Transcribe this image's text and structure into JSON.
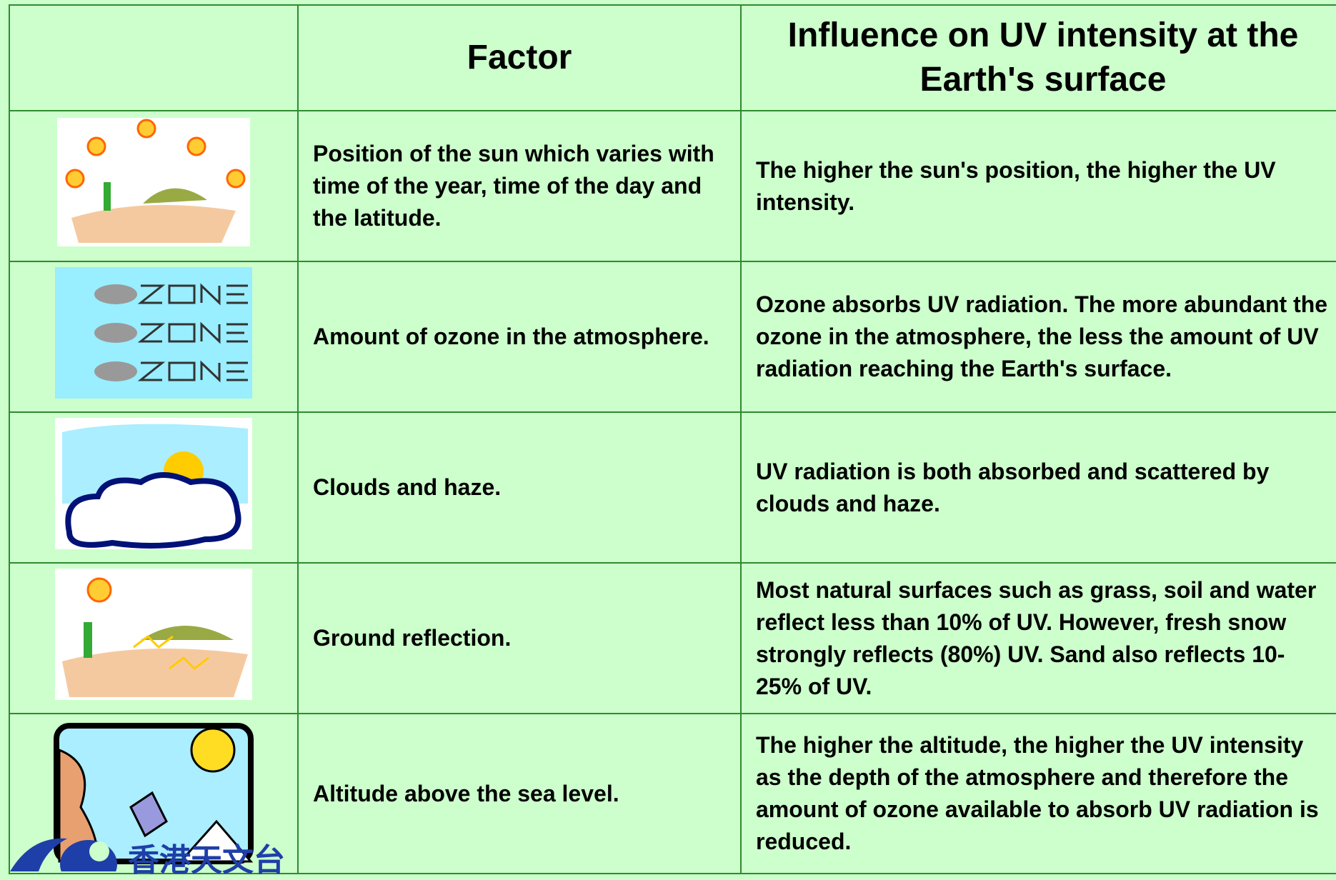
{
  "table": {
    "header": [
      "Factor",
      "Influence on UV intensity at the Earth's surface"
    ],
    "rows": [
      [
        "Position of the sun which varies with time of the year, time of the day and the latitude.",
        "The higher the sun's position, the higher the UV intensity."
      ],
      [
        "Amount of ozone in the atmosphere.",
        "Ozone absorbs UV radiation. The more abundant the ozone in the atmosphere, the less the amount of UV radiation reaching the Earth's surface."
      ],
      [
        "Clouds and haze.",
        "UV radiation is both absorbed and scattered by clouds and haze."
      ],
      [
        "Ground reflection.",
        "Most natural surfaces such as grass, soil and water reflect less than 10% of UV. However, fresh snow strongly reflects (80%) UV. Sand also reflects 10-25% of UV."
      ],
      [
        "Altitude above the sea level.",
        "The higher the altitude, the higher the UV intensity as the depth of the atmosphere and therefore the amount of ozone available to absorb UV radiation is reduced."
      ]
    ]
  },
  "logo": {
    "text": "香港天文台"
  }
}
